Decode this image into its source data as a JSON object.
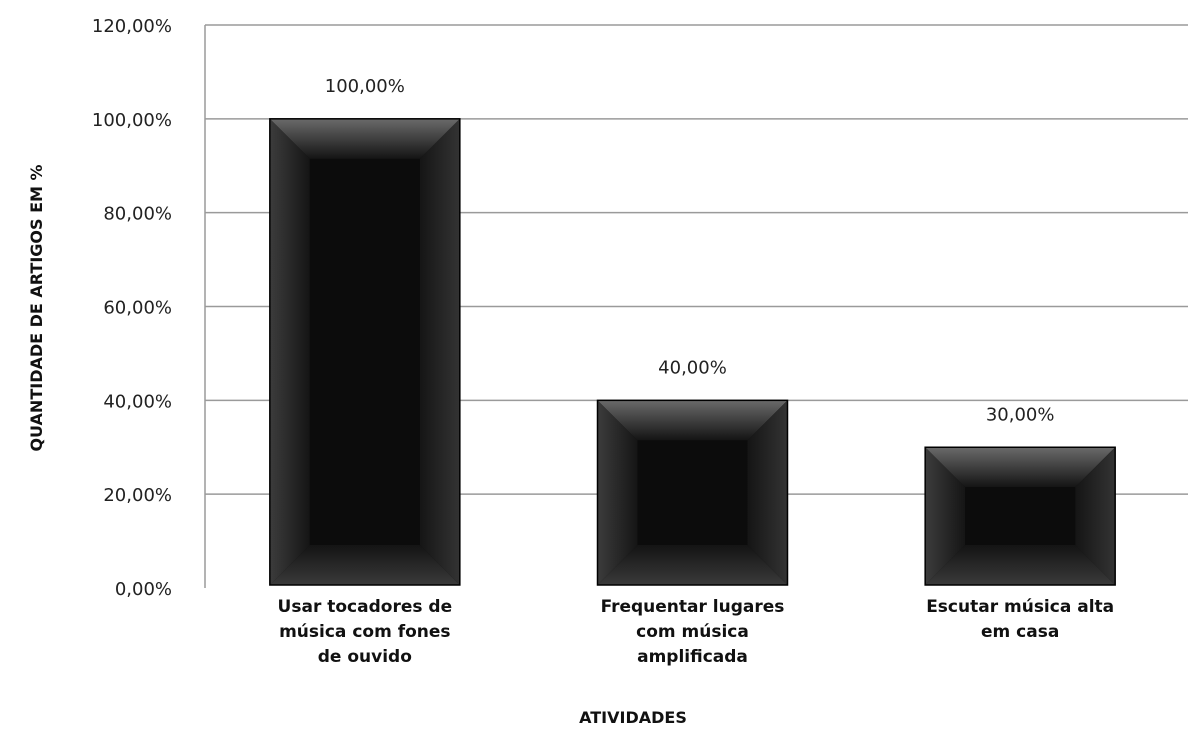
{
  "chart_data": {
    "type": "bar",
    "categories": [
      "Usar tocadores de música com fones de ouvido",
      "Frequentar lugares com música amplificada",
      "Escutar música alta em casa"
    ],
    "category_lines": [
      [
        "Usar tocadores de",
        "música com fones",
        "de ouvido"
      ],
      [
        "Frequentar lugares",
        "com música",
        "amplificada"
      ],
      [
        "Escutar música alta",
        "em casa"
      ]
    ],
    "values": [
      100,
      40,
      30
    ],
    "data_labels": [
      "100,00%",
      "40,00%",
      "30,00%"
    ],
    "ylim": [
      0,
      120
    ],
    "yticks": [
      0,
      20,
      40,
      60,
      80,
      100,
      120
    ],
    "ytick_labels": [
      "0,00%",
      "20,00%",
      "40,00%",
      "60,00%",
      "80,00%",
      "100,00%",
      "120,00%"
    ],
    "xlabel": "ATIVIDADES",
    "ylabel": "QUANTIDADE DE ARTIGOS EM %",
    "grid": true,
    "bar_color": "#0a0a0a",
    "grid_color": "#9a9a9a"
  }
}
